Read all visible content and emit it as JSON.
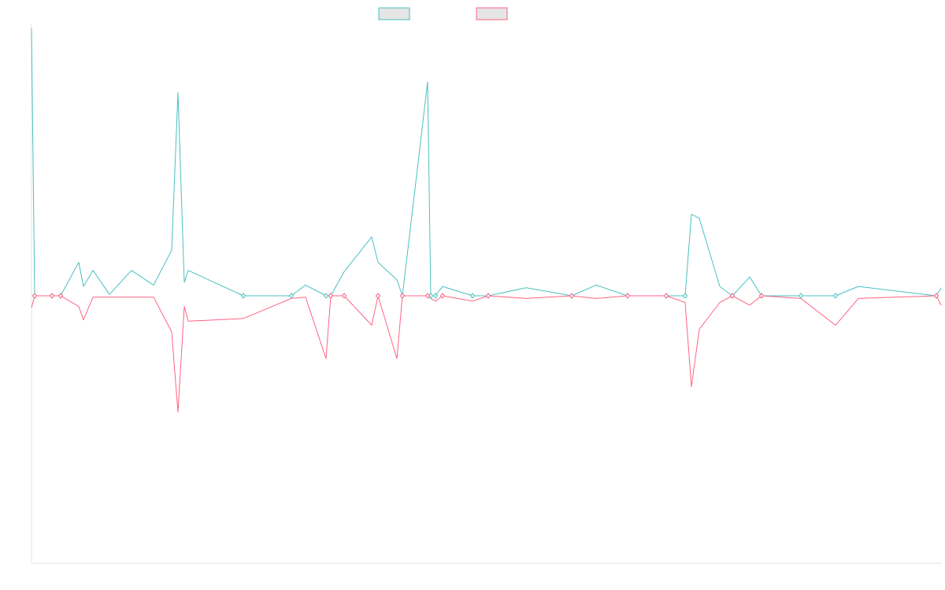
{
  "chart_data": {
    "type": "line",
    "title": "",
    "xlabel": "",
    "ylabel": "",
    "grid": false,
    "legend_position": "top-center",
    "ylim": [
      -100,
      100
    ],
    "xlim": [
      0,
      1155
    ],
    "x": [
      0,
      4,
      26,
      37,
      60,
      66,
      78,
      99,
      127,
      155,
      178,
      186,
      194,
      199,
      269,
      330,
      348,
      374,
      380,
      397,
      432,
      440,
      464,
      471,
      503,
      507,
      513,
      522,
      560,
      580,
      628,
      686,
      717,
      757,
      806,
      830,
      838,
      848,
      874,
      890,
      912,
      927,
      977,
      1021,
      1050,
      1149,
      1155
    ],
    "series": [
      {
        "color": "#4bc0c0",
        "values": [
          100,
          0,
          0,
          0,
          12.5,
          3.5,
          9.5,
          0.5,
          9.5,
          4,
          17,
          76,
          5,
          9.5,
          0,
          0,
          4,
          0,
          0,
          9,
          22,
          12.5,
          6,
          0,
          80,
          0,
          0,
          3.5,
          0,
          0,
          3,
          0,
          4,
          0,
          0,
          0,
          30.5,
          29,
          3.5,
          0,
          7,
          0,
          0,
          0,
          3.5,
          0,
          3
        ]
      },
      {
        "color": "#ff6384",
        "values": [
          -4.5,
          0,
          0,
          0,
          -4,
          -9,
          -0.5,
          -0.5,
          -0.5,
          -0.5,
          -13.5,
          -43.5,
          -4,
          -9.5,
          -8.5,
          -1,
          -0.5,
          -23.5,
          0,
          0,
          -11,
          0,
          -23.5,
          0,
          0,
          -1,
          -2,
          0,
          -2,
          0,
          -1,
          0,
          -1,
          0,
          0,
          -2.5,
          -34,
          -12.5,
          -2.5,
          0,
          -3.5,
          0,
          -1,
          -11,
          -1,
          0,
          -3.5
        ]
      }
    ]
  }
}
